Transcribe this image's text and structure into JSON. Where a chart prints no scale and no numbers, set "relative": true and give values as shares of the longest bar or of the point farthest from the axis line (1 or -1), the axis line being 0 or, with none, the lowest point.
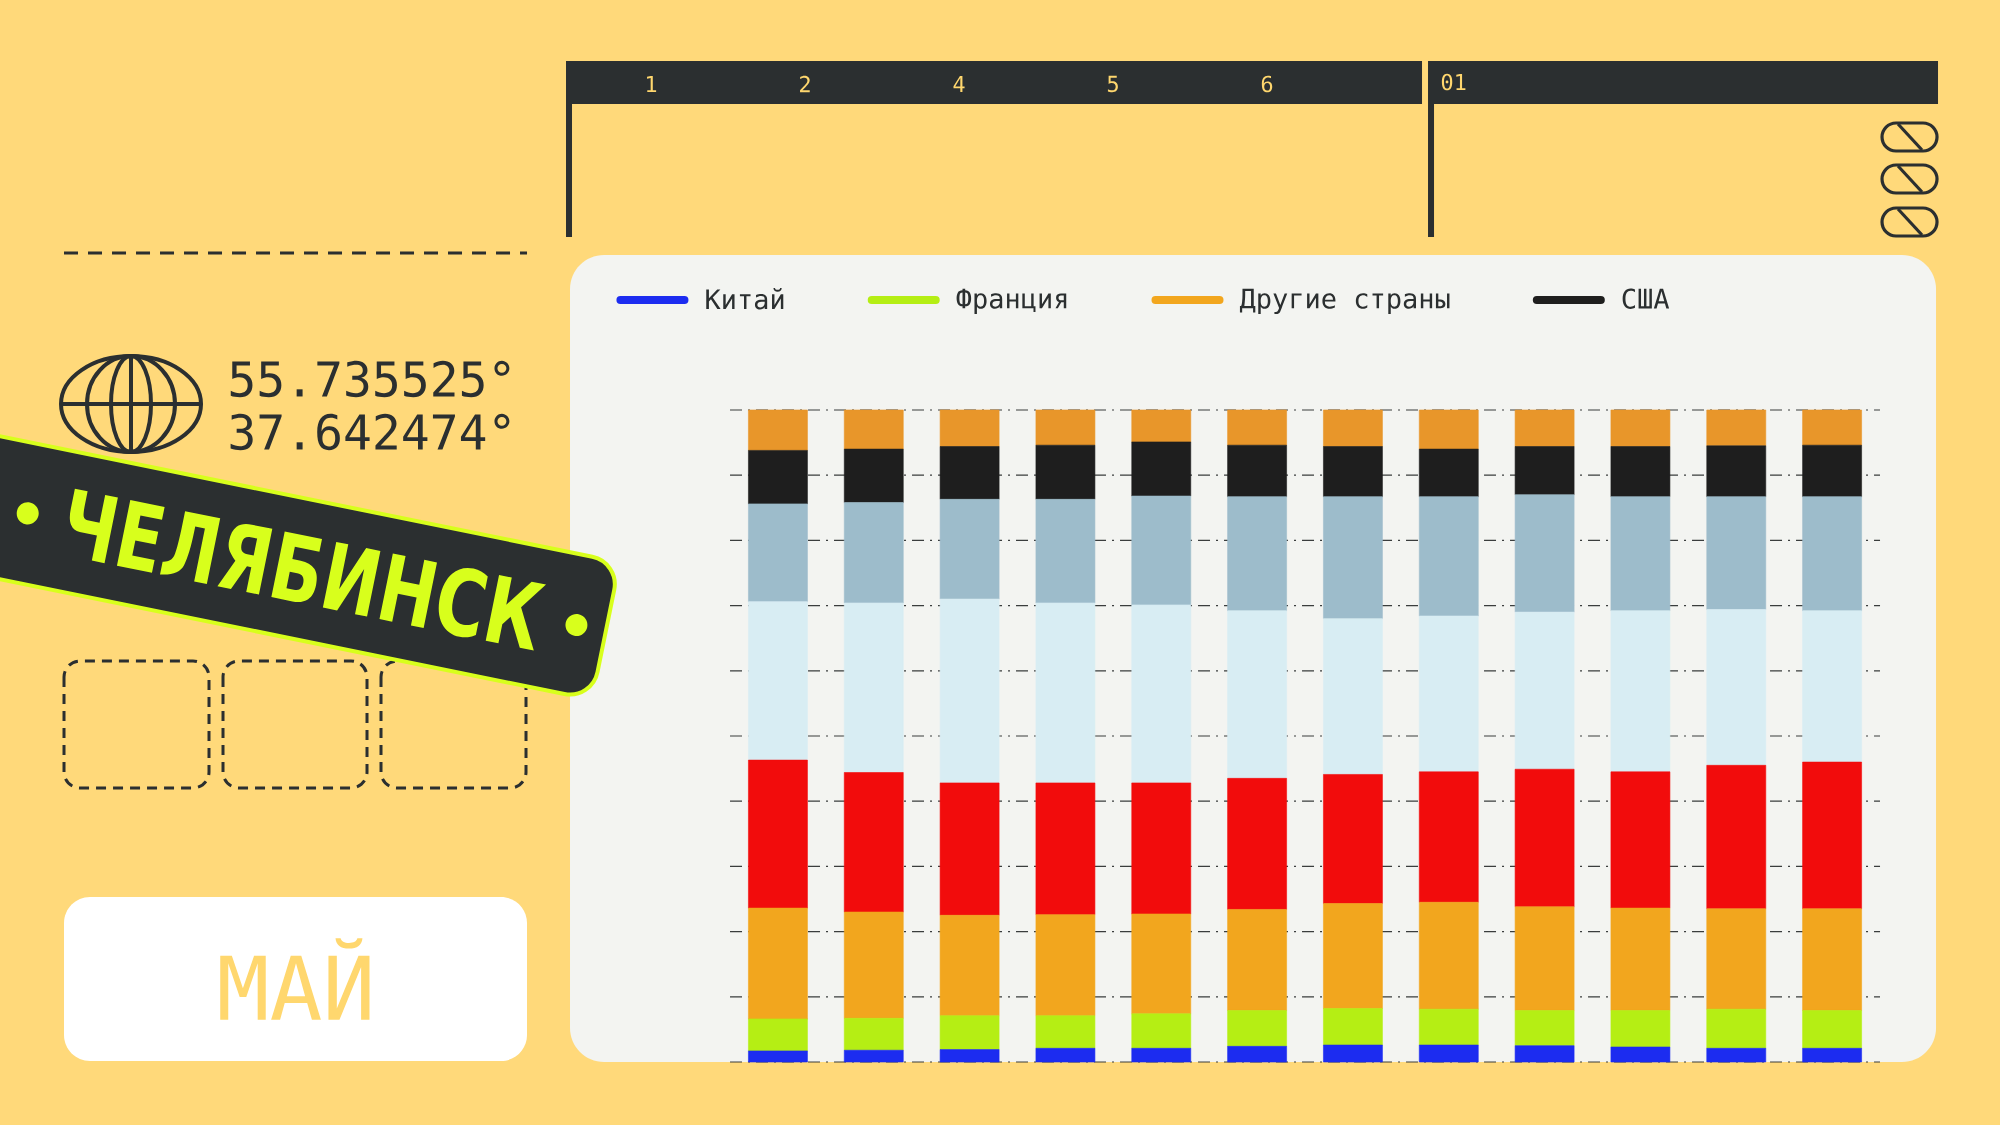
{
  "chart_data": {
    "type": "bar",
    "title": "ЧЕЛЯБИНСК",
    "subtitle": "МАЙ",
    "categories": [
      null,
      null,
      null,
      null,
      null,
      null,
      null,
      null,
      null,
      null,
      null,
      null
    ],
    "stacked": true,
    "relative": true,
    "grid": "y",
    "legend": "top",
    "series": [
      {
        "name": "Китай",
        "color": "#1c2cf0",
        "values": [
          0.017,
          0.018,
          0.019,
          0.021,
          0.021,
          0.024,
          0.026,
          0.026,
          0.025,
          0.023,
          0.021,
          0.021
        ]
      },
      {
        "name": "Франция",
        "color": "#b5ee14",
        "values": [
          0.049,
          0.049,
          0.052,
          0.05,
          0.053,
          0.055,
          0.056,
          0.055,
          0.054,
          0.056,
          0.06,
          0.058
        ]
      },
      {
        "name": "Другие страны",
        "color": "#f2a61e",
        "values": [
          0.17,
          0.163,
          0.154,
          0.155,
          0.153,
          0.155,
          0.161,
          0.164,
          0.159,
          0.157,
          0.154,
          0.156
        ]
      },
      {
        "color": "#f20c0c",
        "values": [
          0.227,
          0.214,
          0.203,
          0.202,
          0.201,
          0.201,
          0.198,
          0.2,
          0.211,
          0.209,
          0.22,
          0.225
        ]
      },
      {
        "color": "#d8edf3",
        "values": [
          0.243,
          0.26,
          0.282,
          0.276,
          0.273,
          0.257,
          0.239,
          0.239,
          0.241,
          0.247,
          0.239,
          0.232
        ]
      },
      {
        "color": "#9dbccb",
        "values": [
          0.15,
          0.154,
          0.153,
          0.159,
          0.167,
          0.175,
          0.187,
          0.183,
          0.18,
          0.175,
          0.173,
          0.175
        ]
      },
      {
        "name": "США",
        "color": "#1e1e1e",
        "values": [
          0.082,
          0.082,
          0.081,
          0.083,
          0.083,
          0.079,
          0.077,
          0.073,
          0.074,
          0.077,
          0.078,
          0.079
        ]
      },
      {
        "color": "#e8962a",
        "values": [
          0.062,
          0.06,
          0.056,
          0.054,
          0.049,
          0.054,
          0.056,
          0.06,
          0.056,
          0.056,
          0.055,
          0.054
        ]
      }
    ],
    "annotations": [
      "55.735525°",
      "37.642474°",
      "1",
      "2",
      "4",
      "5",
      "6",
      "01"
    ]
  }
}
